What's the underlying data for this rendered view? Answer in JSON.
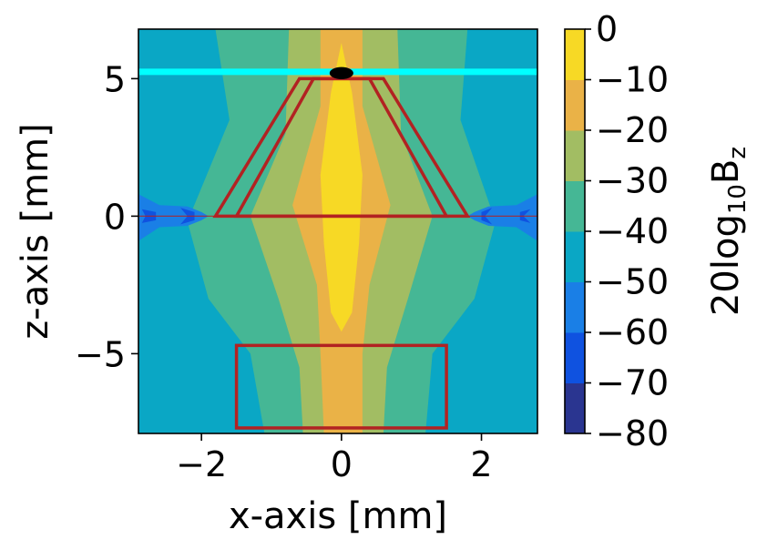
{
  "chart_data": {
    "type": "heatmap",
    "title": "",
    "xlabel": "x-axis [mm]",
    "ylabel": "z-axis [mm]",
    "xlim": [
      -2.9,
      2.8
    ],
    "ylim": [
      -7.9,
      6.8
    ],
    "xticks": [
      -2,
      0,
      2
    ],
    "yticks": [
      -5,
      0,
      5
    ],
    "xtick_labels": [
      "−2",
      "0",
      "2"
    ],
    "ytick_labels": [
      "−5",
      "0",
      "5"
    ],
    "grid": false,
    "colorbar": {
      "label": "20log",
      "label_sub": "10",
      "label_tail": "B",
      "label_tail_sub": "z",
      "levels": [
        -80,
        -70,
        -60,
        -50,
        -40,
        -30,
        -20,
        -10,
        0
      ],
      "tick_labels": [
        "−80",
        "−70",
        "−60",
        "−50",
        "−40",
        "−30",
        "−20",
        "−10",
        "0"
      ],
      "colors": [
        "#2a3590",
        "#0f52e0",
        "#1a7fe6",
        "#0aa7c5",
        "#45b795",
        "#a2bd63",
        "#eab247",
        "#f7d925"
      ]
    },
    "background_level": -45,
    "field_regions": [
      {
        "level": -35,
        "points": [
          [
            -1.8,
            6.8
          ],
          [
            -1.6,
            3.5
          ],
          [
            -2.2,
            -0.2
          ],
          [
            -1.9,
            -3.0
          ],
          [
            -1.3,
            -5.0
          ],
          [
            -1.1,
            -7.9
          ],
          [
            1.2,
            -7.9
          ],
          [
            1.3,
            -5.0
          ],
          [
            1.9,
            -3.0
          ],
          [
            2.2,
            -0.2
          ],
          [
            1.7,
            3.5
          ],
          [
            1.8,
            6.8
          ]
        ]
      },
      {
        "level": -25,
        "points": [
          [
            -0.75,
            6.8
          ],
          [
            -0.8,
            3.0
          ],
          [
            -1.3,
            0.0
          ],
          [
            -0.9,
            -3.0
          ],
          [
            -0.6,
            -5.5
          ],
          [
            -0.55,
            -7.9
          ],
          [
            0.6,
            -7.9
          ],
          [
            0.65,
            -5.5
          ],
          [
            0.95,
            -3.0
          ],
          [
            1.3,
            0.0
          ],
          [
            0.85,
            3.0
          ],
          [
            0.8,
            6.8
          ]
        ]
      },
      {
        "level": -15,
        "points": [
          [
            -0.3,
            6.8
          ],
          [
            -0.3,
            4.0
          ],
          [
            -0.7,
            0.4
          ],
          [
            -0.35,
            -2.5
          ],
          [
            -0.3,
            -5.0
          ],
          [
            -0.25,
            -7.9
          ],
          [
            0.3,
            -7.9
          ],
          [
            0.3,
            -5.0
          ],
          [
            0.4,
            -2.5
          ],
          [
            0.7,
            0.4
          ],
          [
            0.3,
            4.0
          ],
          [
            0.3,
            6.8
          ]
        ]
      },
      {
        "level": -5,
        "points": [
          [
            0.0,
            6.3
          ],
          [
            -0.15,
            4.5
          ],
          [
            -0.3,
            1.5
          ],
          [
            -0.25,
            -1.0
          ],
          [
            -0.15,
            -3.5
          ],
          [
            0.0,
            -4.2
          ],
          [
            0.15,
            -3.5
          ],
          [
            0.25,
            -1.0
          ],
          [
            0.3,
            1.5
          ],
          [
            0.15,
            4.5
          ]
        ]
      },
      {
        "level": -55,
        "points": [
          [
            -2.9,
            0.8
          ],
          [
            -2.6,
            0.4
          ],
          [
            -2.2,
            0.35
          ],
          [
            -2.0,
            0.15
          ],
          [
            -1.9,
            0.0
          ],
          [
            -2.0,
            -0.15
          ],
          [
            -2.2,
            -0.35
          ],
          [
            -2.6,
            -0.4
          ],
          [
            -2.9,
            -0.9
          ]
        ]
      },
      {
        "level": -55,
        "points": [
          [
            2.8,
            0.8
          ],
          [
            2.5,
            0.4
          ],
          [
            2.1,
            0.35
          ],
          [
            1.9,
            0.15
          ],
          [
            1.8,
            0.0
          ],
          [
            1.9,
            -0.15
          ],
          [
            2.1,
            -0.35
          ],
          [
            2.5,
            -0.4
          ],
          [
            2.8,
            -0.9
          ]
        ]
      },
      {
        "level": -65,
        "points": [
          [
            -2.85,
            0.25
          ],
          [
            -2.8,
            0.0
          ],
          [
            -2.85,
            -0.25
          ],
          [
            -2.65,
            -0.15
          ],
          [
            -2.65,
            0.15
          ]
        ]
      },
      {
        "level": -65,
        "points": [
          [
            -2.3,
            0.3
          ],
          [
            -2.2,
            0.0
          ],
          [
            -2.3,
            -0.3
          ],
          [
            -2.1,
            -0.15
          ],
          [
            -2.1,
            0.15
          ]
        ]
      },
      {
        "level": -65,
        "points": [
          [
            2.15,
            0.3
          ],
          [
            2.05,
            0.0
          ],
          [
            2.15,
            -0.3
          ],
          [
            2.0,
            -0.15
          ],
          [
            2.0,
            0.15
          ]
        ]
      },
      {
        "level": -65,
        "points": [
          [
            2.7,
            0.25
          ],
          [
            2.6,
            0.0
          ],
          [
            2.7,
            -0.25
          ],
          [
            2.55,
            -0.15
          ],
          [
            2.55,
            0.15
          ]
        ]
      }
    ],
    "overlays": {
      "cyan_line": {
        "z": 5.25,
        "color": "#00ffff"
      },
      "source_dot": {
        "x": 0.0,
        "z": 5.2,
        "rx": 0.17,
        "rz": 0.22,
        "color": "#000000"
      },
      "outline_color": "#b22222",
      "outer_trapezoid": [
        [
          -1.8,
          0.0
        ],
        [
          -0.6,
          5.0
        ],
        [
          0.6,
          5.0
        ],
        [
          1.8,
          0.0
        ]
      ],
      "inner_trapezoid": [
        [
          -1.5,
          0.0
        ],
        [
          -0.4,
          5.0
        ],
        [
          0.4,
          5.0
        ],
        [
          1.5,
          0.0
        ]
      ],
      "rectangle": [
        [
          -1.5,
          -7.7
        ],
        [
          1.5,
          -4.7
        ]
      ],
      "z0_line": {
        "z": 0.0
      }
    }
  }
}
